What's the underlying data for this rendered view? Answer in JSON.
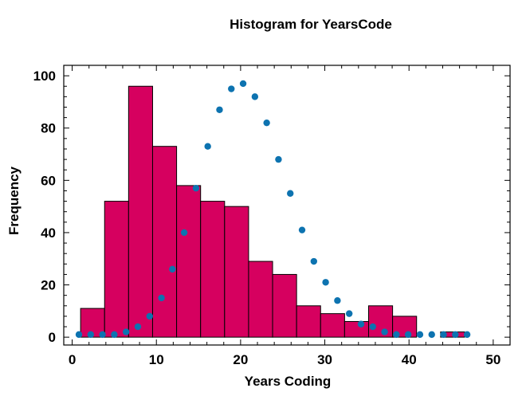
{
  "chart_data": {
    "type": "bar",
    "title": "Histogram for YearsCode",
    "xlabel": "Years Coding",
    "ylabel": "Frequency",
    "xlim": [
      -1,
      52
    ],
    "ylim": [
      -3,
      104
    ],
    "xticks": [
      0,
      10,
      20,
      30,
      40,
      50
    ],
    "yticks": [
      0,
      20,
      40,
      60,
      80,
      100
    ],
    "grid": false,
    "legend": "none",
    "colors": {
      "bar_fill": "#d6005f",
      "bar_edge": "#000000",
      "point": "#0d73b0"
    },
    "histogram": {
      "bin_edges": [
        1,
        3.85,
        6.7,
        9.55,
        12.4,
        15.25,
        18.1,
        20.95,
        23.8,
        26.65,
        29.5,
        32.35,
        35.2,
        38.05,
        40.9,
        43.75,
        46.6
      ],
      "counts": [
        11,
        52,
        96,
        73,
        58,
        52,
        50,
        29,
        24,
        12,
        9,
        6,
        12,
        8,
        0,
        2
      ]
    },
    "points": {
      "x": [
        0.8,
        2.2,
        3.6,
        5.0,
        6.4,
        7.8,
        9.2,
        10.6,
        11.9,
        13.3,
        14.7,
        16.1,
        17.5,
        18.9,
        20.3,
        21.7,
        23.1,
        24.5,
        25.9,
        27.3,
        28.7,
        30.1,
        31.5,
        32.9,
        34.3,
        35.7,
        37.1,
        38.5,
        39.9,
        41.3,
        42.7,
        44.1,
        45.5,
        46.9
      ],
      "y": [
        1,
        1,
        1,
        1,
        2,
        4,
        8,
        15,
        26,
        40,
        57,
        73,
        87,
        95,
        97,
        92,
        82,
        68,
        55,
        41,
        29,
        21,
        14,
        9,
        5,
        4,
        2,
        1,
        1,
        1,
        1,
        1,
        1,
        1
      ]
    }
  }
}
